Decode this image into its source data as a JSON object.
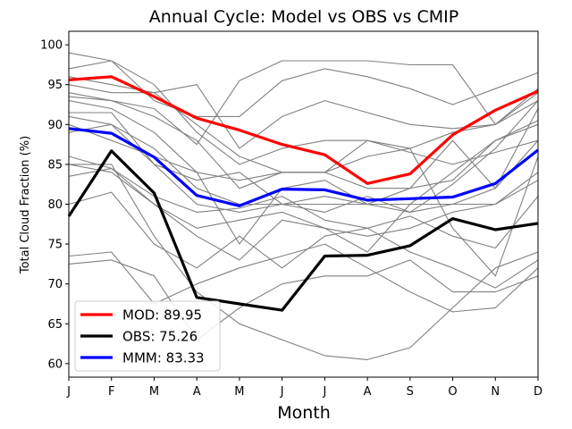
{
  "chart_data": {
    "type": "line",
    "title": "Annual Cycle: Model vs OBS vs CMIP",
    "xlabel": "Month",
    "ylabel": "Total Cloud Fraction (%)",
    "categories": [
      "J",
      "F",
      "M",
      "A",
      "M",
      "J",
      "J",
      "A",
      "S",
      "O",
      "N",
      "D"
    ],
    "ylim": [
      58.3,
      101.7
    ],
    "yticks": [
      60,
      65,
      70,
      75,
      80,
      85,
      90,
      95,
      100
    ],
    "legend_position": "lower-left",
    "ensemble_color": "#808080",
    "ensemble": [
      [
        99.0,
        98.0,
        95.0,
        89.0,
        85.0,
        87.0,
        88.0,
        88.0,
        87.0,
        89.0,
        90.0,
        93.0
      ],
      [
        97.0,
        98.0,
        93.0,
        91.0,
        91.0,
        95.5,
        97.0,
        96.0,
        94.5,
        92.5,
        94.5,
        96.5
      ],
      [
        96.0,
        95.0,
        94.0,
        95.0,
        87.0,
        91.0,
        93.0,
        91.5,
        90.0,
        89.5,
        90.0,
        94.0
      ],
      [
        95.0,
        94.0,
        94.0,
        90.0,
        86.0,
        84.0,
        84.0,
        88.0,
        86.5,
        85.0,
        86.5,
        88.0
      ],
      [
        94.0,
        93.0,
        91.0,
        88.0,
        82.0,
        84.0,
        84.0,
        86.0,
        87.0,
        77.0,
        71.0,
        86.0
      ],
      [
        93.5,
        93.0,
        92.0,
        87.5,
        95.5,
        98.0,
        98.0,
        98.0,
        97.5,
        97.5,
        90.0,
        94.5
      ],
      [
        93.0,
        92.0,
        89.0,
        84.0,
        83.0,
        84.0,
        84.0,
        82.0,
        82.0,
        83.0,
        88.0,
        90.5
      ],
      [
        91.5,
        91.5,
        85.0,
        83.0,
        84.0,
        80.0,
        80.0,
        80.0,
        80.0,
        84.0,
        88.0,
        90.0
      ],
      [
        91.0,
        90.0,
        87.0,
        82.0,
        80.0,
        80.0,
        81.0,
        80.0,
        79.0,
        80.0,
        82.0,
        88.0
      ],
      [
        90.0,
        88.0,
        86.0,
        84.0,
        75.0,
        82.0,
        83.0,
        80.0,
        82.0,
        88.0,
        82.0,
        92.0
      ],
      [
        89.0,
        90.0,
        85.0,
        80.0,
        79.0,
        80.0,
        79.0,
        81.0,
        79.0,
        82.5,
        87.0,
        93.0
      ],
      [
        86.0,
        84.5,
        80.0,
        77.0,
        78.0,
        79.0,
        77.0,
        76.0,
        77.0,
        79.0,
        80.0,
        84.0
      ],
      [
        85.0,
        84.0,
        80.0,
        76.0,
        73.0,
        78.0,
        77.0,
        74.0,
        80.0,
        80.0,
        80.0,
        83.0
      ],
      [
        83.5,
        84.5,
        81.0,
        79.0,
        79.5,
        81.0,
        78.0,
        77.0,
        78.5,
        76.0,
        74.5,
        81.0
      ],
      [
        80.0,
        81.5,
        75.0,
        72.0,
        76.0,
        72.0,
        76.0,
        77.0,
        74.0,
        72.0,
        69.5,
        73.0
      ],
      [
        73.5,
        74.0,
        67.5,
        70.0,
        72.0,
        73.5,
        75.0,
        72.0,
        69.0,
        66.5,
        67.0,
        72.0
      ],
      [
        72.5,
        73.0,
        71.0,
        63.0,
        67.0,
        70.0,
        71.0,
        71.0,
        73.0,
        69.0,
        69.0,
        71.0
      ],
      [
        85.0,
        85.0,
        76.0,
        69.0,
        65.0,
        63.0,
        61.0,
        60.5,
        62.0,
        67.0,
        72.0,
        74.0
      ]
    ],
    "series": [
      {
        "name": "MOD",
        "legend_label": "MOD: 89.95",
        "color": "#ff0000",
        "values": [
          95.6,
          96.0,
          93.5,
          90.8,
          89.3,
          87.5,
          86.2,
          82.6,
          83.8,
          88.7,
          91.8,
          94.2
        ]
      },
      {
        "name": "OBS",
        "legend_label": "OBS: 75.26",
        "color": "#000000",
        "values": [
          78.5,
          86.7,
          81.4,
          68.3,
          67.5,
          66.7,
          73.5,
          73.6,
          74.8,
          78.2,
          76.8,
          77.6
        ]
      },
      {
        "name": "MMM",
        "legend_label": "MMM: 83.33",
        "color": "#0000ff",
        "values": [
          89.5,
          88.9,
          85.9,
          81.1,
          79.8,
          81.9,
          81.8,
          80.5,
          80.7,
          80.9,
          82.6,
          86.8
        ]
      }
    ]
  }
}
